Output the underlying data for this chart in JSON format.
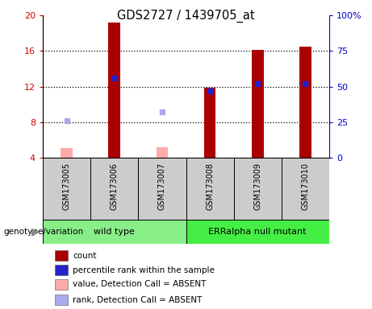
{
  "title": "GDS2727 / 1439705_at",
  "samples": [
    "GSM173005",
    "GSM173006",
    "GSM173007",
    "GSM173008",
    "GSM173009",
    "GSM173010"
  ],
  "ylim_left": [
    4,
    20
  ],
  "ylim_right": [
    0,
    100
  ],
  "yticks_left": [
    4,
    8,
    12,
    16,
    20
  ],
  "yticks_right": [
    0,
    25,
    50,
    75,
    100
  ],
  "bar_color": "#aa0000",
  "absent_bar_color": "#ffaaaa",
  "rank_color": "#2222cc",
  "absent_rank_color": "#aaaaee",
  "count_values": [
    null,
    19.2,
    null,
    11.9,
    16.1,
    16.5
  ],
  "absent_count_values": [
    5.1,
    null,
    5.2,
    null,
    null,
    null
  ],
  "rank_values_pct": [
    null,
    56.0,
    null,
    47.0,
    52.0,
    52.0
  ],
  "absent_rank_values_pct": [
    26.0,
    null,
    32.0,
    null,
    null,
    null
  ],
  "bar_width": 0.25,
  "rank_marker_size": 25,
  "left_axis_color": "#cc0000",
  "right_axis_color": "#0000cc",
  "sample_bg_color": "#cccccc",
  "wt_color": "#88ee88",
  "er_color": "#44ee44",
  "grid_dotted_values": [
    8,
    12,
    16
  ]
}
